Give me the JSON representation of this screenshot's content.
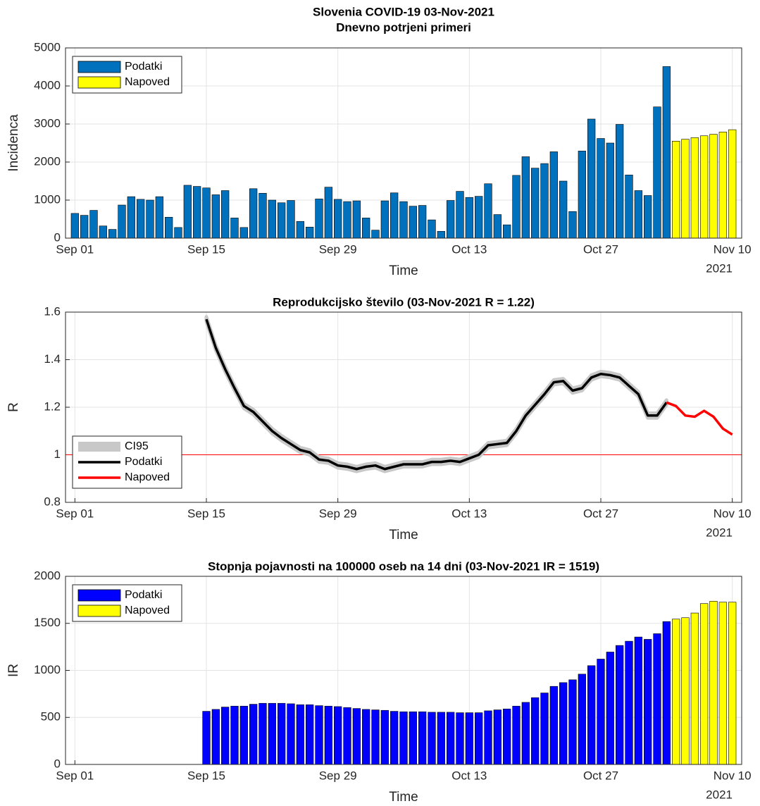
{
  "chart_data": [
    {
      "type": "bar",
      "title": "Slovenia COVID-19 03-Nov-2021",
      "subtitle": "Dnevno potrjeni primeri",
      "xlabel": "Time",
      "xlabel_year": "2021",
      "ylabel": "Incidenca",
      "x": [
        "2021-09-01",
        "2021-09-02",
        "2021-09-03",
        "2021-09-04",
        "2021-09-05",
        "2021-09-06",
        "2021-09-07",
        "2021-09-08",
        "2021-09-09",
        "2021-09-10",
        "2021-09-11",
        "2021-09-12",
        "2021-09-13",
        "2021-09-14",
        "2021-09-15",
        "2021-09-16",
        "2021-09-17",
        "2021-09-18",
        "2021-09-19",
        "2021-09-20",
        "2021-09-21",
        "2021-09-22",
        "2021-09-23",
        "2021-09-24",
        "2021-09-25",
        "2021-09-26",
        "2021-09-27",
        "2021-09-28",
        "2021-09-29",
        "2021-09-30",
        "2021-10-01",
        "2021-10-02",
        "2021-10-03",
        "2021-10-04",
        "2021-10-05",
        "2021-10-06",
        "2021-10-07",
        "2021-10-08",
        "2021-10-09",
        "2021-10-10",
        "2021-10-11",
        "2021-10-12",
        "2021-10-13",
        "2021-10-14",
        "2021-10-15",
        "2021-10-16",
        "2021-10-17",
        "2021-10-18",
        "2021-10-19",
        "2021-10-20",
        "2021-10-21",
        "2021-10-22",
        "2021-10-23",
        "2021-10-24",
        "2021-10-25",
        "2021-10-26",
        "2021-10-27",
        "2021-10-28",
        "2021-10-29",
        "2021-10-30",
        "2021-10-31",
        "2021-11-01",
        "2021-11-02",
        "2021-11-03",
        "2021-11-04",
        "2021-11-05",
        "2021-11-06",
        "2021-11-07",
        "2021-11-08",
        "2021-11-09",
        "2021-11-10"
      ],
      "series": [
        {
          "name": "Podatki",
          "color": "#0072bd",
          "values": [
            650,
            600,
            730,
            320,
            230,
            870,
            1090,
            1020,
            1000,
            1090,
            550,
            280,
            1390,
            1360,
            1320,
            1140,
            1250,
            530,
            280,
            1300,
            1180,
            1000,
            930,
            990,
            440,
            290,
            1030,
            1340,
            1020,
            960,
            980,
            530,
            210,
            980,
            1190,
            960,
            840,
            860,
            480,
            180,
            990,
            1230,
            1070,
            1100,
            1430,
            620,
            350,
            1650,
            2140,
            1840,
            1960,
            2270,
            1500,
            700,
            2290,
            3130,
            2620,
            2500,
            2990,
            1660,
            1250,
            1120,
            3450,
            4510,
            null,
            null,
            null,
            null,
            null,
            null,
            null
          ]
        },
        {
          "name": "Napoved",
          "color": "#ffff00",
          "values": [
            null,
            null,
            null,
            null,
            null,
            null,
            null,
            null,
            null,
            null,
            null,
            null,
            null,
            null,
            null,
            null,
            null,
            null,
            null,
            null,
            null,
            null,
            null,
            null,
            null,
            null,
            null,
            null,
            null,
            null,
            null,
            null,
            null,
            null,
            null,
            null,
            null,
            null,
            null,
            null,
            null,
            null,
            null,
            null,
            null,
            null,
            null,
            null,
            null,
            null,
            null,
            null,
            null,
            null,
            null,
            null,
            null,
            null,
            null,
            null,
            null,
            null,
            null,
            null,
            2550,
            2600,
            2640,
            2690,
            2730,
            2790,
            2850
          ]
        }
      ],
      "xlim": [
        "2021-08-31",
        "2021-11-11"
      ],
      "xticks": [
        {
          "value": "2021-09-01",
          "label": "Sep 01"
        },
        {
          "value": "2021-09-15",
          "label": "Sep 15"
        },
        {
          "value": "2021-09-29",
          "label": "Sep 29"
        },
        {
          "value": "2021-10-13",
          "label": "Oct 13"
        },
        {
          "value": "2021-10-27",
          "label": "Oct 27"
        },
        {
          "value": "2021-11-10",
          "label": "Nov 10"
        }
      ],
      "ylim": [
        0,
        5000
      ],
      "yticks": [
        0,
        1000,
        2000,
        3000,
        4000,
        5000
      ],
      "grid": true,
      "legend": "northwest"
    },
    {
      "type": "line",
      "title": "Reprodukcijsko število (03-Nov-2021 R = 1.22)",
      "xlabel": "Time",
      "xlabel_year": "2021",
      "ylabel": "R",
      "x": [
        "2021-09-15",
        "2021-09-16",
        "2021-09-17",
        "2021-09-18",
        "2021-09-19",
        "2021-09-20",
        "2021-09-21",
        "2021-09-22",
        "2021-09-23",
        "2021-09-24",
        "2021-09-25",
        "2021-09-26",
        "2021-09-27",
        "2021-09-28",
        "2021-09-29",
        "2021-09-30",
        "2021-10-01",
        "2021-10-02",
        "2021-10-03",
        "2021-10-04",
        "2021-10-05",
        "2021-10-06",
        "2021-10-07",
        "2021-10-08",
        "2021-10-09",
        "2021-10-10",
        "2021-10-11",
        "2021-10-12",
        "2021-10-13",
        "2021-10-14",
        "2021-10-15",
        "2021-10-16",
        "2021-10-17",
        "2021-10-18",
        "2021-10-19",
        "2021-10-20",
        "2021-10-21",
        "2021-10-22",
        "2021-10-23",
        "2021-10-24",
        "2021-10-25",
        "2021-10-26",
        "2021-10-27",
        "2021-10-28",
        "2021-10-29",
        "2021-10-30",
        "2021-10-31",
        "2021-11-01",
        "2021-11-02",
        "2021-11-03",
        "2021-11-04",
        "2021-11-05",
        "2021-11-06",
        "2021-11-07",
        "2021-11-08",
        "2021-11-09",
        "2021-11-10"
      ],
      "series": [
        {
          "name": "CI95",
          "color": "#c8c8c8",
          "upper": [
            1.58,
            1.46,
            1.37,
            1.29,
            1.215,
            1.19,
            1.15,
            1.11,
            1.08,
            1.055,
            1.03,
            1.02,
            0.99,
            0.985,
            0.965,
            0.96,
            0.95,
            0.96,
            0.965,
            0.95,
            0.96,
            0.97,
            0.97,
            0.97,
            0.98,
            0.98,
            0.985,
            0.98,
            0.995,
            1.01,
            1.05,
            1.055,
            1.06,
            1.11,
            1.175,
            1.22,
            1.265,
            1.315,
            1.32,
            1.28,
            1.29,
            1.335,
            1.35,
            1.345,
            1.335,
            1.3,
            1.265,
            1.175,
            1.175,
            1.23,
            null,
            null,
            null,
            null,
            null,
            null,
            null
          ],
          "lower": [
            1.56,
            1.44,
            1.35,
            1.27,
            1.195,
            1.17,
            1.13,
            1.09,
            1.06,
            1.035,
            1.01,
            1.0,
            0.97,
            0.965,
            0.945,
            0.94,
            0.93,
            0.94,
            0.945,
            0.93,
            0.94,
            0.95,
            0.95,
            0.95,
            0.96,
            0.96,
            0.965,
            0.96,
            0.975,
            0.99,
            1.03,
            1.035,
            1.04,
            1.09,
            1.155,
            1.2,
            1.245,
            1.295,
            1.3,
            1.26,
            1.27,
            1.315,
            1.33,
            1.325,
            1.315,
            1.28,
            1.245,
            1.155,
            1.155,
            1.21,
            null,
            null,
            null,
            null,
            null,
            null,
            null
          ]
        },
        {
          "name": "Podatki",
          "color": "#000000",
          "values": [
            1.57,
            1.45,
            1.36,
            1.28,
            1.205,
            1.18,
            1.14,
            1.1,
            1.07,
            1.045,
            1.02,
            1.01,
            0.98,
            0.975,
            0.955,
            0.95,
            0.94,
            0.95,
            0.955,
            0.94,
            0.95,
            0.96,
            0.96,
            0.96,
            0.97,
            0.97,
            0.975,
            0.97,
            0.985,
            1.0,
            1.04,
            1.045,
            1.05,
            1.1,
            1.165,
            1.21,
            1.255,
            1.305,
            1.31,
            1.27,
            1.28,
            1.325,
            1.34,
            1.335,
            1.325,
            1.29,
            1.255,
            1.165,
            1.165,
            1.22,
            null,
            null,
            null,
            null,
            null,
            null,
            null
          ]
        },
        {
          "name": "Napoved",
          "color": "#ff0000",
          "values": [
            null,
            null,
            null,
            null,
            null,
            null,
            null,
            null,
            null,
            null,
            null,
            null,
            null,
            null,
            null,
            null,
            null,
            null,
            null,
            null,
            null,
            null,
            null,
            null,
            null,
            null,
            null,
            null,
            null,
            null,
            null,
            null,
            null,
            null,
            null,
            null,
            null,
            null,
            null,
            null,
            null,
            null,
            null,
            null,
            null,
            null,
            null,
            null,
            null,
            1.22,
            1.205,
            1.165,
            1.16,
            1.185,
            1.16,
            1.11,
            1.085
          ]
        }
      ],
      "reference_line": {
        "value": 1,
        "color": "#ff0000"
      },
      "xlim": [
        "2021-08-31",
        "2021-11-11"
      ],
      "xticks": [
        {
          "value": "2021-09-01",
          "label": "Sep 01"
        },
        {
          "value": "2021-09-15",
          "label": "Sep 15"
        },
        {
          "value": "2021-09-29",
          "label": "Sep 29"
        },
        {
          "value": "2021-10-13",
          "label": "Oct 13"
        },
        {
          "value": "2021-10-27",
          "label": "Oct 27"
        },
        {
          "value": "2021-11-10",
          "label": "Nov 10"
        }
      ],
      "ylim": [
        0.8,
        1.6
      ],
      "yticks": [
        0.8,
        1,
        1.2,
        1.4,
        1.6
      ],
      "grid": true,
      "legend": "southwest"
    },
    {
      "type": "bar",
      "title": "Stopnja pojavnosti na 100000 oseb na 14 dni (03-Nov-2021 IR = 1519)",
      "xlabel": "Time",
      "xlabel_year": "2021",
      "ylabel": "IR",
      "x": [
        "2021-09-15",
        "2021-09-16",
        "2021-09-17",
        "2021-09-18",
        "2021-09-19",
        "2021-09-20",
        "2021-09-21",
        "2021-09-22",
        "2021-09-23",
        "2021-09-24",
        "2021-09-25",
        "2021-09-26",
        "2021-09-27",
        "2021-09-28",
        "2021-09-29",
        "2021-09-30",
        "2021-10-01",
        "2021-10-02",
        "2021-10-03",
        "2021-10-04",
        "2021-10-05",
        "2021-10-06",
        "2021-10-07",
        "2021-10-08",
        "2021-10-09",
        "2021-10-10",
        "2021-10-11",
        "2021-10-12",
        "2021-10-13",
        "2021-10-14",
        "2021-10-15",
        "2021-10-16",
        "2021-10-17",
        "2021-10-18",
        "2021-10-19",
        "2021-10-20",
        "2021-10-21",
        "2021-10-22",
        "2021-10-23",
        "2021-10-24",
        "2021-10-25",
        "2021-10-26",
        "2021-10-27",
        "2021-10-28",
        "2021-10-29",
        "2021-10-30",
        "2021-10-31",
        "2021-11-01",
        "2021-11-02",
        "2021-11-03",
        "2021-11-04",
        "2021-11-05",
        "2021-11-06",
        "2021-11-07",
        "2021-11-08",
        "2021-11-09",
        "2021-11-10"
      ],
      "series": [
        {
          "name": "Podatki",
          "color": "#0000ff",
          "values": [
            565,
            585,
            610,
            620,
            620,
            640,
            650,
            650,
            650,
            645,
            635,
            635,
            625,
            620,
            615,
            605,
            595,
            585,
            580,
            575,
            565,
            560,
            560,
            560,
            555,
            555,
            555,
            550,
            550,
            550,
            570,
            580,
            590,
            620,
            660,
            710,
            760,
            830,
            870,
            900,
            960,
            1050,
            1120,
            1195,
            1265,
            1310,
            1355,
            1330,
            1390,
            1519,
            null,
            null,
            null,
            null,
            null,
            null,
            null
          ]
        },
        {
          "name": "Napoved",
          "color": "#ffff00",
          "values": [
            null,
            null,
            null,
            null,
            null,
            null,
            null,
            null,
            null,
            null,
            null,
            null,
            null,
            null,
            null,
            null,
            null,
            null,
            null,
            null,
            null,
            null,
            null,
            null,
            null,
            null,
            null,
            null,
            null,
            null,
            null,
            null,
            null,
            null,
            null,
            null,
            null,
            null,
            null,
            null,
            null,
            null,
            null,
            null,
            null,
            null,
            null,
            null,
            null,
            null,
            1545,
            1560,
            1610,
            1710,
            1735,
            1725,
            1725
          ]
        }
      ],
      "xlim": [
        "2021-08-31",
        "2021-11-11"
      ],
      "xticks": [
        {
          "value": "2021-09-01",
          "label": "Sep 01"
        },
        {
          "value": "2021-09-15",
          "label": "Sep 15"
        },
        {
          "value": "2021-09-29",
          "label": "Sep 29"
        },
        {
          "value": "2021-10-13",
          "label": "Oct 13"
        },
        {
          "value": "2021-10-27",
          "label": "Oct 27"
        },
        {
          "value": "2021-11-10",
          "label": "Nov 10"
        }
      ],
      "ylim": [
        0,
        2000
      ],
      "yticks": [
        0,
        500,
        1000,
        1500,
        2000
      ],
      "grid": true,
      "legend": "northwest"
    }
  ]
}
